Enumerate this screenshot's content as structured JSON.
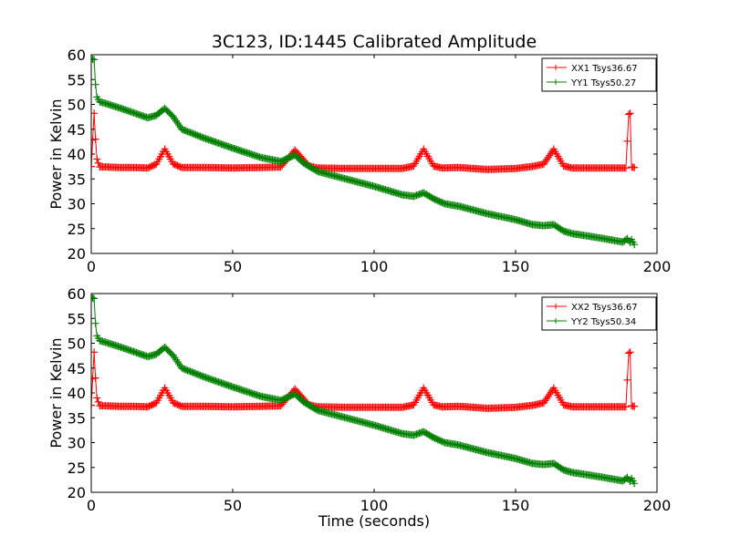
{
  "figure": {
    "title": "3C123, ID:1445 Calibrated Amplitude"
  },
  "chart_data": [
    {
      "type": "line",
      "title": "3C123, ID:1445 Calibrated Amplitude",
      "xlabel": "",
      "ylabel": "Power in Kelvin",
      "xlim": [
        0,
        200
      ],
      "ylim": [
        20,
        60
      ],
      "xticks": [
        "0",
        "50",
        "100",
        "150",
        "200"
      ],
      "yticks": [
        "20",
        "25",
        "30",
        "35",
        "40",
        "45",
        "50",
        "55",
        "60"
      ],
      "grid": false,
      "legend_position": "top-right",
      "marker": "+",
      "series": [
        {
          "name": "XX1 Tsys36.67",
          "color": "#ff0000",
          "x": [
            0,
            1,
            1.5,
            2,
            3,
            5,
            10,
            15,
            20,
            23,
            26,
            29,
            32,
            40,
            50,
            60,
            67,
            72,
            77,
            80,
            90,
            100,
            110,
            114,
            117.5,
            121,
            124,
            130,
            140,
            150,
            156,
            160,
            163.5,
            167,
            170,
            180,
            189,
            190,
            190.5,
            191,
            192
          ],
          "y": [
            37.5,
            48.2,
            43,
            39,
            37.4,
            37.4,
            37.3,
            37.3,
            37.2,
            38,
            41,
            38,
            37.3,
            37.3,
            37.2,
            37.3,
            37.4,
            40.8,
            37.6,
            37.2,
            37.1,
            37.1,
            37.1,
            37.6,
            41,
            37.6,
            37.2,
            37.3,
            36.9,
            37.1,
            37.5,
            38,
            41,
            37.6,
            37.2,
            37.2,
            37.2,
            48,
            48.2,
            37.4,
            37.3
          ]
        },
        {
          "name": "YY1 Tsys50.27",
          "color": "#008000",
          "x": [
            0,
            1,
            1.5,
            2,
            3,
            5,
            10,
            15,
            20,
            23,
            26,
            29,
            32,
            40,
            50,
            60,
            67,
            70,
            72,
            75,
            80,
            90,
            100,
            110,
            114,
            117.5,
            121,
            125,
            130,
            140,
            150,
            156,
            160,
            163.5,
            167,
            170,
            180,
            188,
            189.5,
            190.5,
            191,
            192
          ],
          "y": [
            59.2,
            59,
            54,
            51.5,
            50.5,
            50.2,
            49.3,
            48.3,
            47.3,
            47.8,
            49.2,
            47.5,
            45,
            43.2,
            41.2,
            39.3,
            38.5,
            39.3,
            39.8,
            38.2,
            36.5,
            35,
            33.5,
            31.8,
            31.5,
            32.2,
            31,
            30,
            29.5,
            28,
            26.8,
            25.8,
            25.6,
            25.8,
            24.5,
            24,
            23.1,
            22.3,
            23,
            22.2,
            22.8,
            21.8
          ]
        }
      ]
    },
    {
      "type": "line",
      "title": "",
      "xlabel": "Time (seconds)",
      "ylabel": "Power in Kelvin",
      "xlim": [
        0,
        200
      ],
      "ylim": [
        20,
        60
      ],
      "xticks": [
        "0",
        "50",
        "100",
        "150",
        "200"
      ],
      "yticks": [
        "20",
        "25",
        "30",
        "35",
        "40",
        "45",
        "50",
        "55",
        "60"
      ],
      "grid": false,
      "legend_position": "top-right",
      "marker": "+",
      "series": [
        {
          "name": "XX2 Tsys36.67",
          "color": "#ff0000",
          "x": [
            0,
            1,
            1.5,
            2,
            3,
            5,
            10,
            15,
            20,
            23,
            26,
            29,
            32,
            40,
            50,
            60,
            67,
            72,
            77,
            80,
            90,
            100,
            110,
            114,
            117.5,
            121,
            124,
            130,
            140,
            150,
            156,
            160,
            163.5,
            167,
            170,
            180,
            189,
            190,
            190.5,
            191,
            192
          ],
          "y": [
            37.5,
            48.2,
            43,
            39,
            37.4,
            37.4,
            37.3,
            37.3,
            37.2,
            38,
            41,
            38,
            37.3,
            37.3,
            37.2,
            37.3,
            37.4,
            40.8,
            37.6,
            37.2,
            37.1,
            37.1,
            37.1,
            37.6,
            41,
            37.6,
            37.2,
            37.3,
            36.9,
            37.1,
            37.5,
            38,
            41,
            37.6,
            37.2,
            37.2,
            37.2,
            48,
            48.2,
            37.4,
            37.3
          ]
        },
        {
          "name": "YY2 Tsys50.34",
          "color": "#008000",
          "x": [
            0,
            1,
            1.5,
            2,
            3,
            5,
            10,
            15,
            20,
            23,
            26,
            29,
            32,
            40,
            50,
            60,
            67,
            70,
            72,
            75,
            80,
            90,
            100,
            110,
            114,
            117.5,
            121,
            125,
            130,
            140,
            150,
            156,
            160,
            163.5,
            167,
            170,
            180,
            188,
            189.5,
            190.5,
            191,
            192
          ],
          "y": [
            59.2,
            59,
            54,
            51.5,
            50.5,
            50.2,
            49.3,
            48.3,
            47.3,
            47.8,
            49.2,
            47.5,
            45,
            43.2,
            41.2,
            39.3,
            38.5,
            39.3,
            39.8,
            38.2,
            36.5,
            35,
            33.5,
            31.8,
            31.5,
            32.2,
            31,
            30,
            29.5,
            28,
            26.8,
            25.8,
            25.6,
            25.8,
            24.5,
            24,
            23.1,
            22.3,
            23,
            22.2,
            22.8,
            21.8
          ]
        }
      ]
    }
  ]
}
